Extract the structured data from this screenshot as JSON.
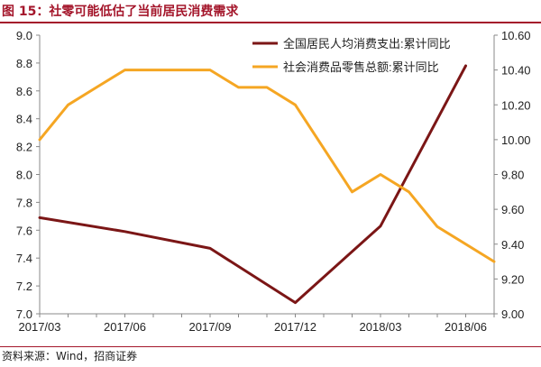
{
  "title": "图 15：社零可能低估了当前居民消费需求",
  "source": "资料来源：Wind，招商证券",
  "colors": {
    "brand": "#a4162b",
    "series1": "#7b1616",
    "series2": "#f5a623"
  },
  "chart_data": {
    "type": "line",
    "title": "",
    "x_categories": [
      "2017/03",
      "2017/04",
      "2017/05",
      "2017/06",
      "2017/07",
      "2017/08",
      "2017/09",
      "2017/10",
      "2017/11",
      "2017/12",
      "2018/01",
      "2018/02",
      "2018/03",
      "2018/04",
      "2018/05",
      "2018/06",
      "2018/07"
    ],
    "x_tick_labels": [
      "2017/03",
      "2017/06",
      "2017/09",
      "2017/12",
      "2018/03",
      "2018/06"
    ],
    "y_left": {
      "min": 7.0,
      "max": 9.0,
      "ticks": [
        "7.0",
        "7.2",
        "7.4",
        "7.6",
        "7.8",
        "8.0",
        "8.2",
        "8.4",
        "8.6",
        "8.8",
        "9.0"
      ]
    },
    "y_right": {
      "min": 9.0,
      "max": 10.6,
      "ticks": [
        "9.00",
        "9.20",
        "9.40",
        "9.60",
        "9.80",
        "10.00",
        "10.20",
        "10.40",
        "10.60"
      ]
    },
    "grid": false,
    "legend_position": "top-right",
    "series": [
      {
        "name": "全国居民人均消费支出:累计同比",
        "axis": "left",
        "color": "#7b1616",
        "points": [
          [
            "2017/03",
            7.69
          ],
          [
            "2017/06",
            7.59
          ],
          [
            "2017/09",
            7.47
          ],
          [
            "2017/12",
            7.08
          ],
          [
            "2018/03",
            7.63
          ],
          [
            "2018/06",
            8.78
          ]
        ]
      },
      {
        "name": "社会消费品零售总额:累计同比",
        "axis": "right",
        "color": "#f5a623",
        "points": [
          [
            "2017/03",
            10.0
          ],
          [
            "2017/04",
            10.2
          ],
          [
            "2017/05",
            10.3
          ],
          [
            "2017/06",
            10.4
          ],
          [
            "2017/07",
            10.4
          ],
          [
            "2017/08",
            10.4
          ],
          [
            "2017/09",
            10.4
          ],
          [
            "2017/10",
            10.3
          ],
          [
            "2017/11",
            10.3
          ],
          [
            "2017/12",
            10.2
          ],
          [
            "2018/02",
            9.7
          ],
          [
            "2018/03",
            9.8
          ],
          [
            "2018/04",
            9.7
          ],
          [
            "2018/05",
            9.5
          ],
          [
            "2018/07",
            9.3
          ]
        ]
      }
    ]
  }
}
